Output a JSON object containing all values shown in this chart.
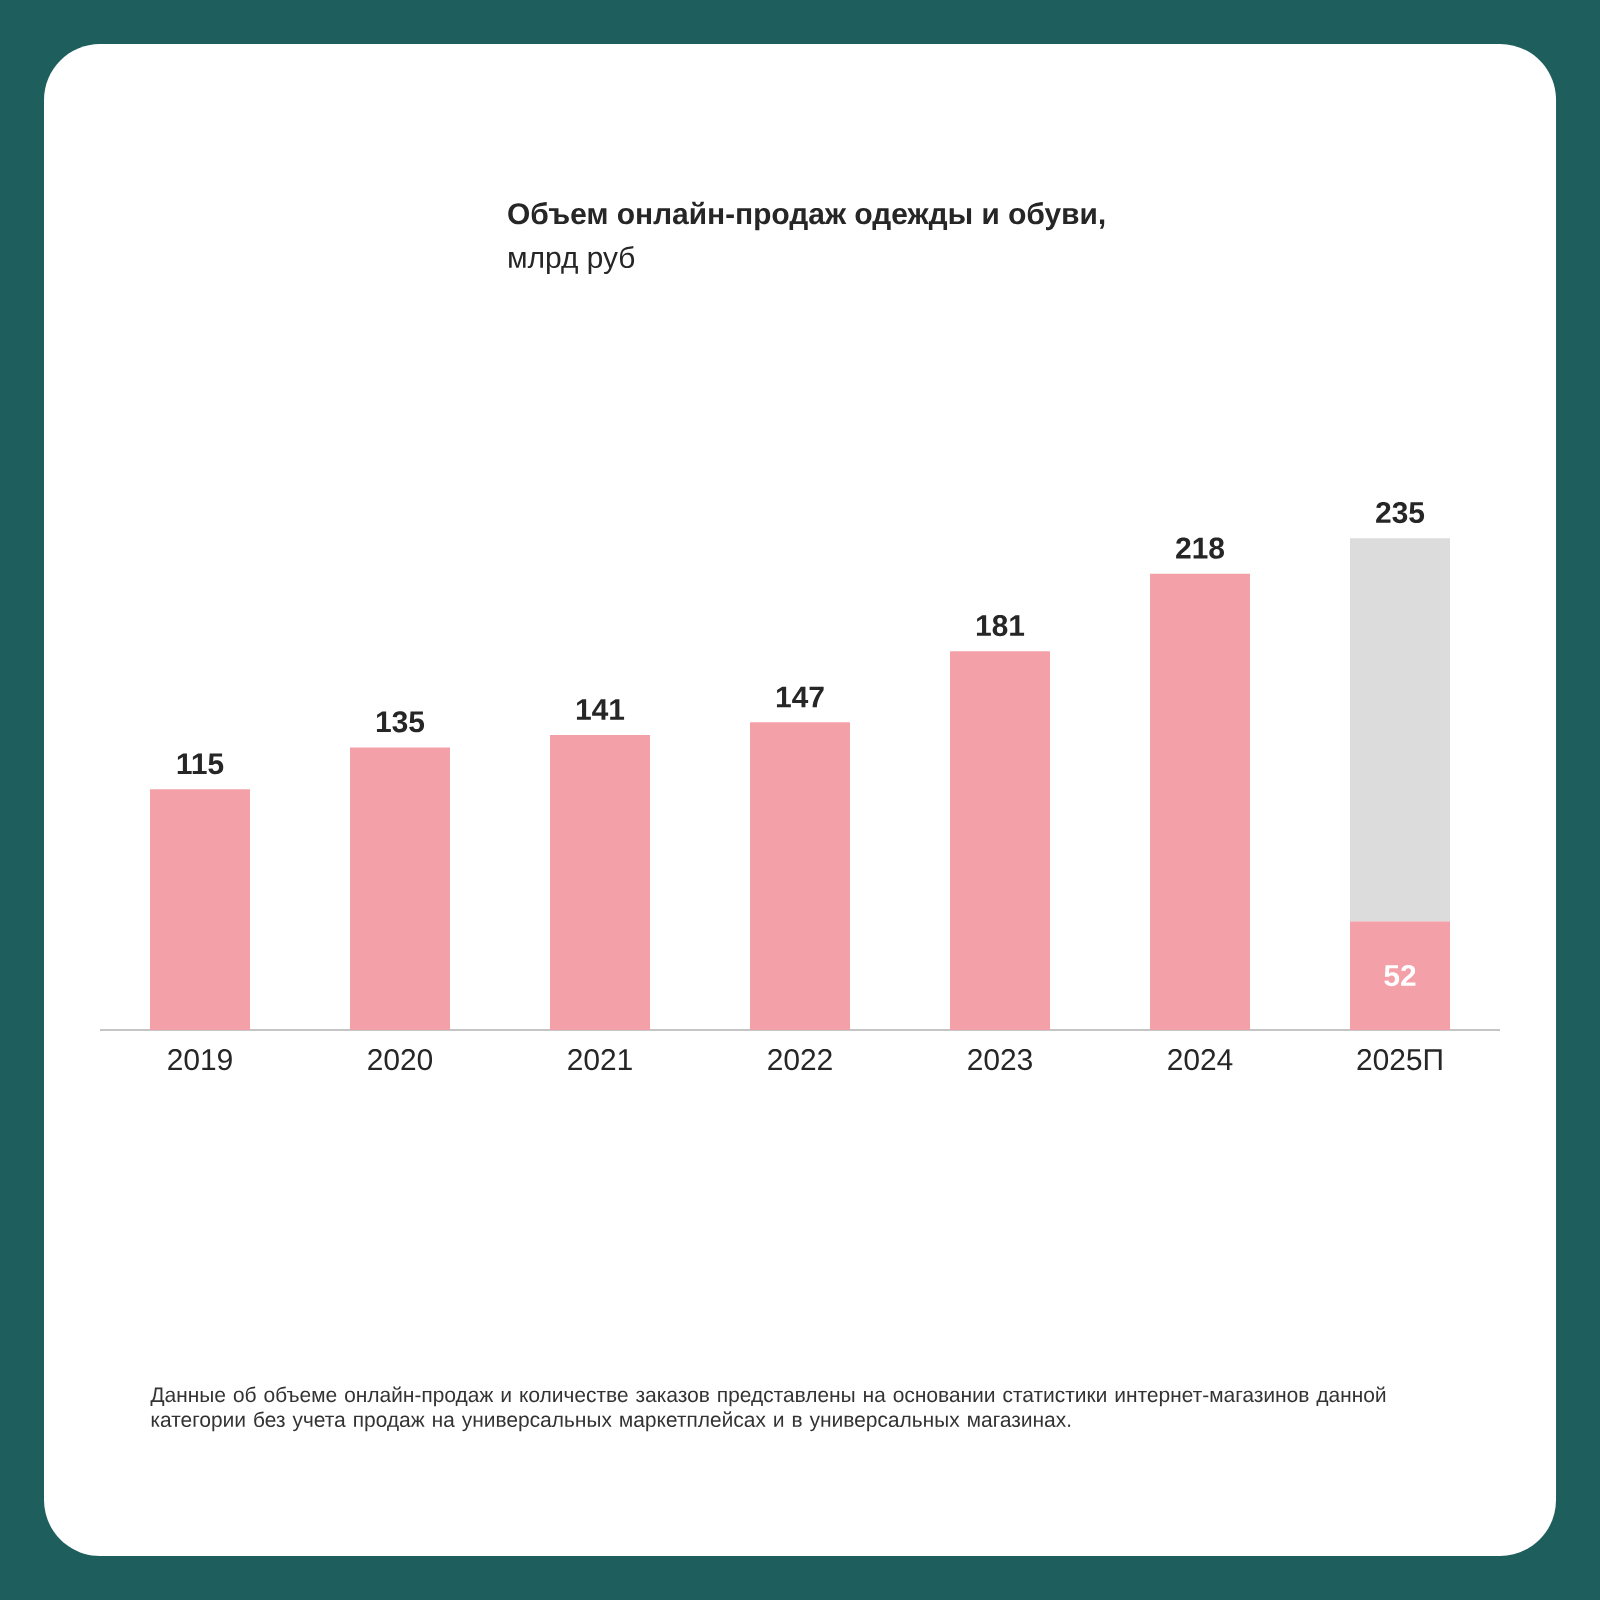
{
  "chart_data": {
    "type": "bar",
    "title": "Объем онлайн-продаж одежды и обуви,",
    "subtitle": "млрд руб",
    "categories": [
      "2019",
      "2020",
      "2021",
      "2022",
      "2023",
      "2024",
      "2025П"
    ],
    "stacked": true,
    "series": [
      {
        "color": "#f4a0a8",
        "values": [
          115,
          135,
          141,
          147,
          181,
          218,
          52
        ],
        "value_labels": [
          "115",
          "135",
          "141",
          "147",
          "181",
          "218",
          "52"
        ]
      },
      {
        "color": "#dcdcdc",
        "values": [
          null,
          null,
          null,
          null,
          null,
          null,
          183
        ]
      }
    ],
    "totals": [
      null,
      null,
      null,
      null,
      null,
      null,
      "235"
    ],
    "annotations": [
      "Данные об объеме онлайн-продаж и количестве заказов представлены на основании статистики интернет-магазинов данной категории без учета продаж на универсальных маркетплейсах и в универсальных магазинах."
    ]
  }
}
